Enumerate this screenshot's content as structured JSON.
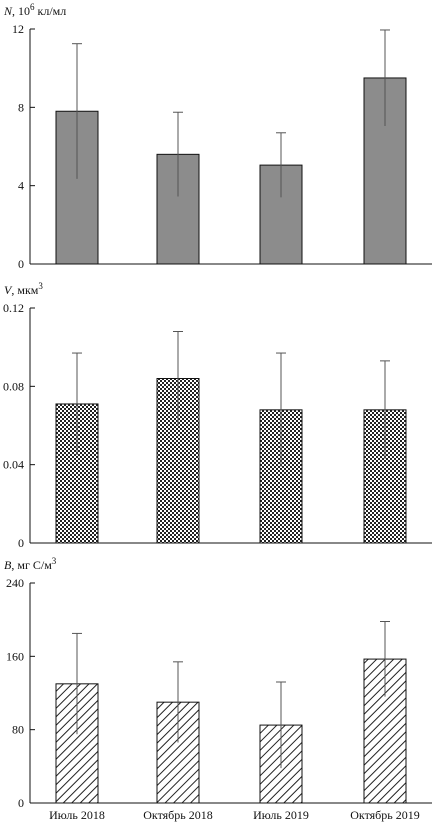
{
  "chart_data": [
    {
      "type": "bar",
      "ylabel": {
        "symbol": "N",
        "pre": ", 10",
        "sup": "6",
        "post": " кл/мл"
      },
      "categories": [
        "Июль 2018",
        "Октябрь 2018",
        "Июль 2019",
        "Октябрь 2019"
      ],
      "values": [
        7.8,
        5.6,
        5.05,
        9.5
      ],
      "errors": [
        3.45,
        2.15,
        1.65,
        2.45
      ],
      "ylim": [
        0,
        12
      ],
      "yticks": [
        "0",
        "4",
        "8",
        "12"
      ],
      "fill": "#8c8c8c",
      "pattern": "solid"
    },
    {
      "type": "bar",
      "ylabel": {
        "symbol": "V",
        "pre": ", мкм",
        "sup": "3",
        "post": ""
      },
      "categories": [
        "Июль 2018",
        "Октябрь 2018",
        "Июль 2019",
        "Октябрь 2019"
      ],
      "values": [
        0.071,
        0.084,
        0.068,
        0.068
      ],
      "errors": [
        0.026,
        0.024,
        0.029,
        0.025
      ],
      "ylim": [
        0,
        0.12
      ],
      "yticks": [
        "0",
        "0.04",
        "0.08",
        "0.12"
      ],
      "fill": "#222222",
      "pattern": "checker"
    },
    {
      "type": "bar",
      "ylabel": {
        "symbol": "B",
        "pre": ", мг С/м",
        "sup": "3",
        "post": ""
      },
      "categories": [
        "Июль 2018",
        "Октябрь 2018",
        "Июль 2019",
        "Октябрь 2019"
      ],
      "values": [
        130,
        110,
        85,
        157
      ],
      "errors": [
        55,
        44,
        47,
        41
      ],
      "ylim": [
        0,
        240
      ],
      "yticks": [
        "0",
        "80",
        "160",
        "240"
      ],
      "fill": "#222222",
      "pattern": "hatch"
    }
  ]
}
